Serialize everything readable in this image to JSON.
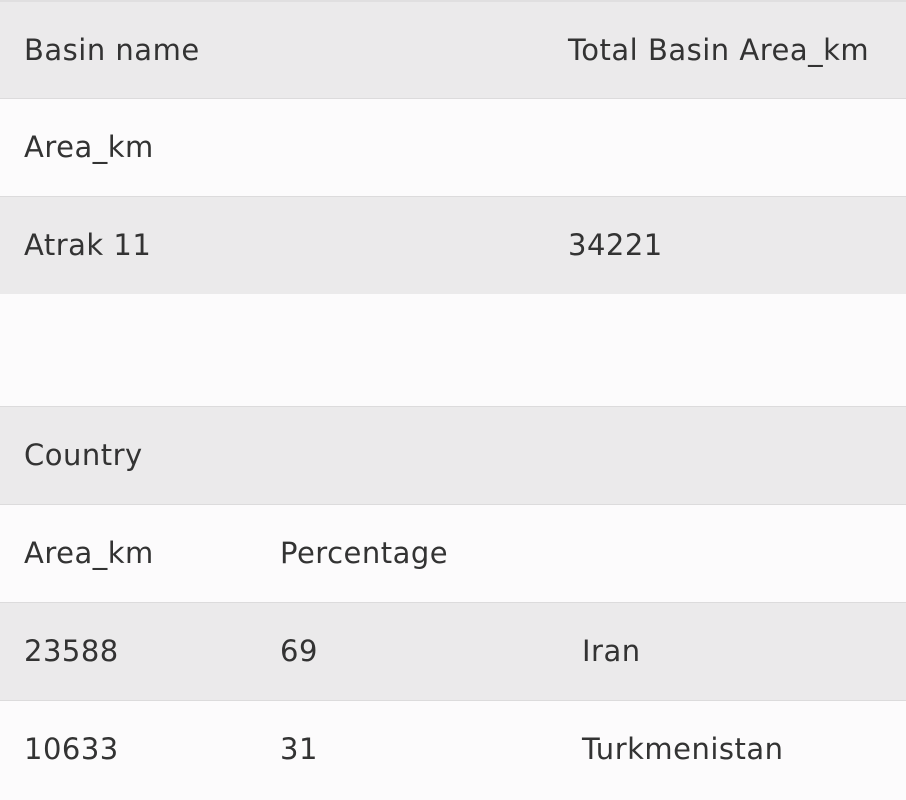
{
  "table1": {
    "header": [
      "Basin name",
      "Total Basin Area_km"
    ],
    "rows": [
      [
        "Area_km"
      ],
      [
        "Atrak 11",
        "34221"
      ]
    ]
  },
  "table2": {
    "header": [
      "Country"
    ],
    "rows": [
      [
        "Area_km",
        "Percentage"
      ],
      [
        "23588",
        "69",
        "Iran"
      ],
      [
        "10633",
        "31",
        "Turkmenistan"
      ]
    ]
  }
}
